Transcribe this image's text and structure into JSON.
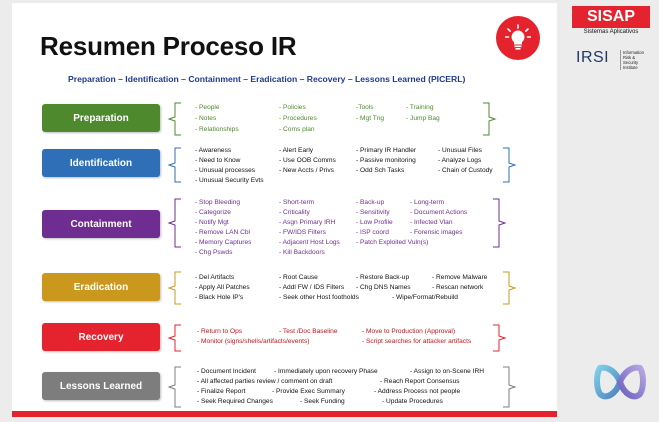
{
  "slide": {
    "title": "Resumen Proceso IR",
    "subtitle": "Preparation – Identification – Containment – Eradication – Recovery – Lessons Learned (PICERL)",
    "bulb_icon": "lightbulb-icon",
    "accent": "#e4232e"
  },
  "logos": {
    "sisap": "SISAP",
    "sisap_sub": "Sistemas Aplicativos",
    "irsi": "IRSI",
    "irsi_sub": [
      "Information",
      "Risk & Security",
      "Institute"
    ]
  },
  "phases": [
    {
      "label": "Preparation",
      "color": "#4e8a2d",
      "brace_color": "#4e8a2d",
      "text_color": "#4e8a2d",
      "items": [
        "People",
        "Policies",
        "-Tools",
        "Training",
        "Notes",
        "Procedures",
        "Mgt Tng",
        "Jump Bag",
        "Relationships",
        "Coms plan"
      ]
    },
    {
      "label": "Identification",
      "color": "#2e6fb7",
      "brace_color": "#2e6fb7",
      "text_color": "#111111",
      "items": [
        "Awareness",
        "Alert Early",
        "Primary IR Handler",
        "Unusual Files",
        "Need to Know",
        "Use OOB Comms",
        "Passive monitoring",
        "Analyze Logs",
        "Unusual processes",
        "New Accts / Privs",
        "Odd Sch Tasks",
        "Chain of Custody",
        "Unusual Security Evts"
      ]
    },
    {
      "label": "Containment",
      "color": "#6f2d91",
      "brace_color": "#6f2d91",
      "text_color": "#6f2d91",
      "items": [
        "Stop Bleeding",
        "Short-term",
        "Back-up",
        "Long-term",
        "Categorize",
        "Criticality",
        "Sensitivity",
        "Document Actions",
        "Notify Mgt",
        "Asgn Primary IRH",
        "Low Profile",
        "Infected Vlan",
        "Remove LAN Cbl",
        "FW/IDS Filters",
        "ISP coord",
        "Forensic images",
        "Memory Captures",
        "Adjacent Host Logs",
        "Patch Exploited Vuln(s)",
        "Chg Pswds",
        "Kill Backdoors"
      ]
    },
    {
      "label": "Eradication",
      "color": "#c9981d",
      "brace_color": "#c9981d",
      "text_color": "#111111",
      "items": [
        "Del Artifacts",
        "Root Cause",
        "Restore Back-up",
        "Remove Malware",
        "Apply All Patches",
        "Addl FW / IDS Filters",
        "Chg DNS Names",
        "Rescan network",
        "Black Hole IP's",
        "Seek other Host footholds",
        "Wipe/Format/Rebuild"
      ]
    },
    {
      "label": "Recovery",
      "color": "#e4232e",
      "brace_color": "#e4232e",
      "text_color": "#c0141c",
      "items": [
        "Return to Ops",
        "Test /Doc Baseline",
        "Move to Production (Approval)",
        "Monitor (signs/shells/artifacts/events)",
        "Script searches for attacker artifacts"
      ]
    },
    {
      "label": "Lessons Learned",
      "color": "#7d7d7d",
      "brace_color": "#7d7d7d",
      "text_color": "#111111",
      "items": [
        "Document Incident",
        "Immediately upon recovery Phase",
        "Assign to on-Scene IRH",
        "All affected parties review / comment on draft",
        "Reach Report Consensus",
        "Finalize Report",
        "Provide Exec Summary",
        "Address Process not people",
        "Seek Required Changes",
        "Seek Funding",
        "Update Procedures"
      ]
    }
  ],
  "decor": {
    "infinity_icon": "infinity-logo-icon"
  }
}
